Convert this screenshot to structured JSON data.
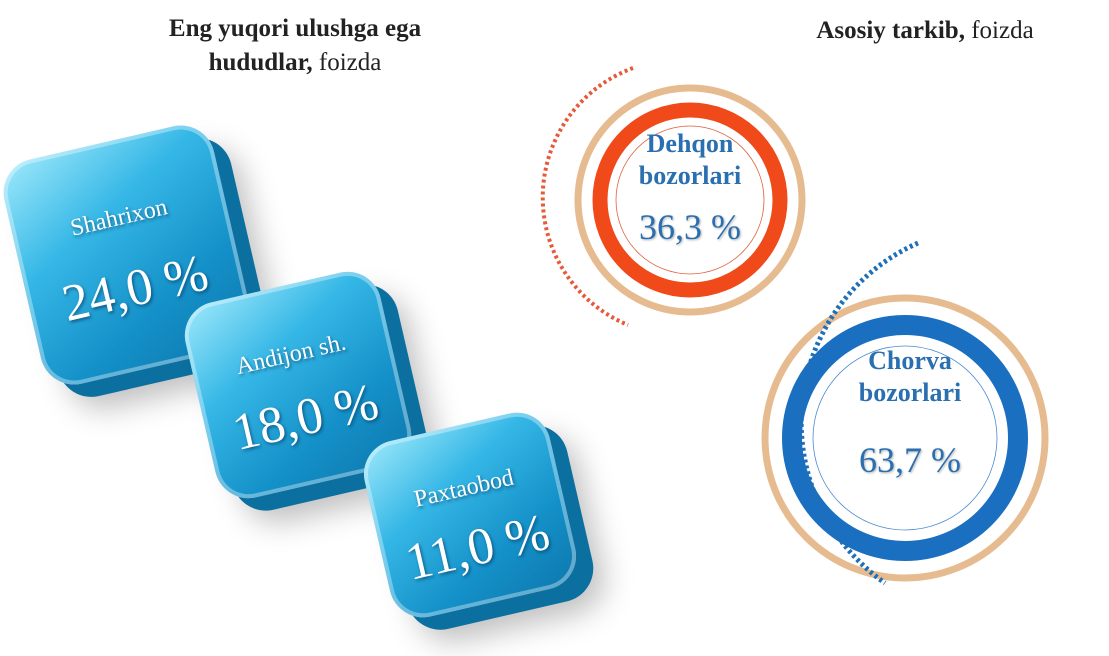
{
  "left": {
    "title_bold": "Eng yuqori ulushga ega hududlar,",
    "title_unit": "foizda",
    "items": [
      {
        "label": "Shahrixon",
        "value": "24,0 %"
      },
      {
        "label": "Andijon sh.",
        "value": "18,0 %"
      },
      {
        "label": "Paxtaobod",
        "value": "11,0 %"
      }
    ]
  },
  "right": {
    "title_bold": "Asosiy tarkib,",
    "title_unit": "foizda",
    "items": [
      {
        "label": "Dehqon bozorlari",
        "value": "36,3 %"
      },
      {
        "label": "Chorva bozorlari",
        "value": "63,7 %"
      }
    ]
  }
}
